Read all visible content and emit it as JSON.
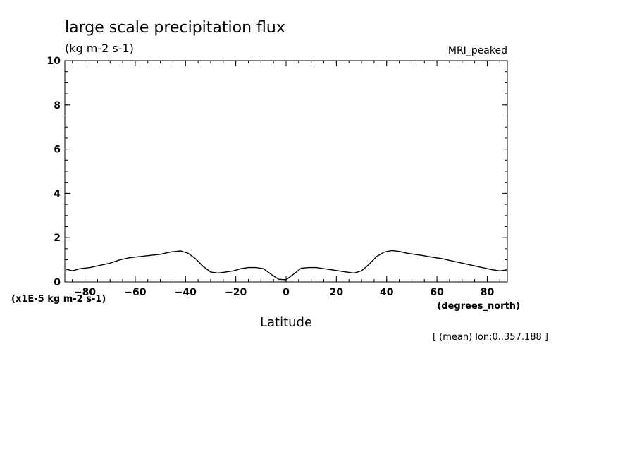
{
  "chart_data": {
    "type": "line",
    "title": "large scale precipitation flux",
    "units": "(kg m-2 s-1)",
    "model": "MRI_peaked",
    "xlabel": "Latitude",
    "x_units": "(degrees_north)",
    "y_scale_label": "(x1E-5 kg m-2 s-1)",
    "note": "[ (mean) lon:0..357.188 ]",
    "xlim": [
      -88,
      88
    ],
    "ylim": [
      0,
      10
    ],
    "x_ticks": [
      -80,
      -60,
      -40,
      -20,
      0,
      20,
      40,
      60,
      80
    ],
    "x_tick_labels": [
      "-80",
      "-60",
      "-40",
      "-20",
      "0",
      "20",
      "40",
      "60",
      "80"
    ],
    "y_ticks": [
      0,
      2,
      4,
      6,
      8,
      10
    ],
    "y_tick_labels": [
      "0",
      "2",
      "4",
      "6",
      "8",
      "10"
    ],
    "grid": false,
    "series": [
      {
        "x": [
          -88,
          -85,
          -82,
          -78,
          -74,
          -70,
          -66,
          -62,
          -58,
          -54,
          -50,
          -46,
          -42,
          -39,
          -36,
          -33,
          -30,
          -27,
          -24,
          -21,
          -18,
          -15,
          -12,
          -9,
          -6,
          -3,
          0,
          3,
          6,
          9,
          12,
          15,
          18,
          21,
          24,
          27,
          30,
          33,
          36,
          39,
          42,
          45,
          48,
          51,
          54,
          58,
          62,
          66,
          70,
          74,
          78,
          82,
          85,
          88
        ],
        "values": [
          0.6,
          0.5,
          0.6,
          0.65,
          0.75,
          0.85,
          1.0,
          1.1,
          1.15,
          1.2,
          1.25,
          1.35,
          1.4,
          1.3,
          1.05,
          0.7,
          0.45,
          0.4,
          0.45,
          0.5,
          0.6,
          0.65,
          0.65,
          0.6,
          0.35,
          0.12,
          0.1,
          0.35,
          0.62,
          0.65,
          0.65,
          0.6,
          0.55,
          0.5,
          0.45,
          0.4,
          0.5,
          0.8,
          1.15,
          1.35,
          1.42,
          1.38,
          1.3,
          1.25,
          1.2,
          1.12,
          1.05,
          0.95,
          0.85,
          0.75,
          0.65,
          0.55,
          0.5,
          0.55
        ]
      }
    ]
  }
}
